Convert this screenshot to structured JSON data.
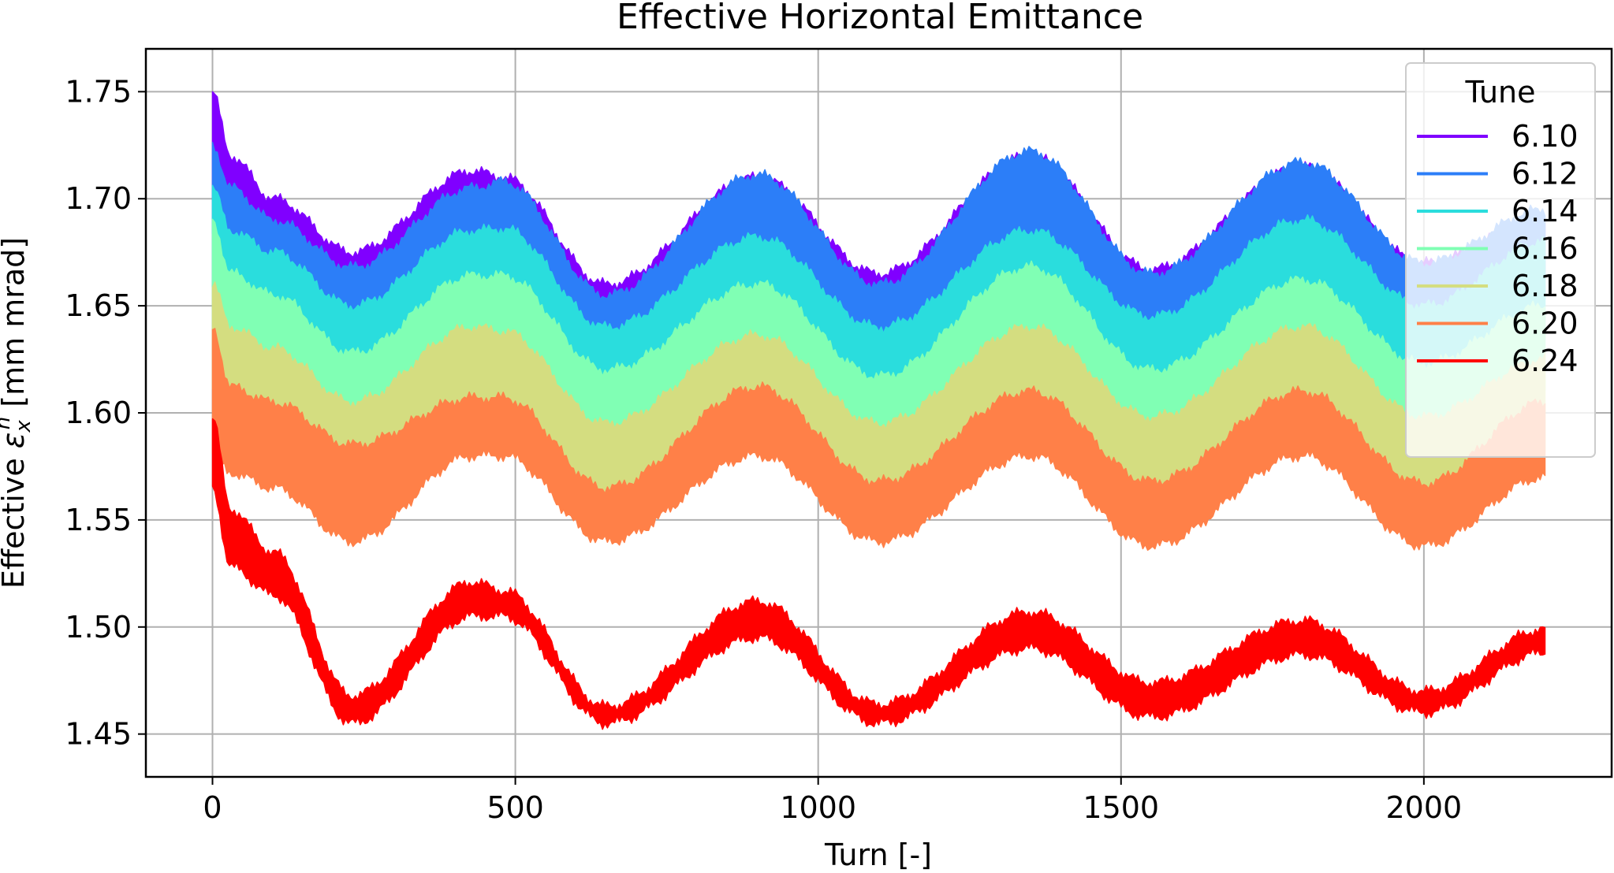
{
  "chart_data": {
    "type": "area",
    "title": "Effective Horizontal Emittance",
    "xlabel": "Turn [-]",
    "ylabel_prefix": "Effective ",
    "ylabel_symbol": "ε",
    "ylabel_subscript": "x",
    "ylabel_superscript": "n",
    "ylabel_units": " [mm mrad]",
    "xlim": [
      -110,
      2310
    ],
    "ylim": [
      1.43,
      1.77
    ],
    "xticks": [
      0,
      500,
      1000,
      1500,
      2000
    ],
    "yticks": [
      1.45,
      1.5,
      1.55,
      1.6,
      1.65,
      1.7,
      1.75
    ],
    "xtick_labels": [
      "0",
      "500",
      "1000",
      "1500",
      "2000"
    ],
    "ytick_labels": [
      "1.45",
      "1.50",
      "1.55",
      "1.60",
      "1.65",
      "1.70",
      "1.75"
    ],
    "grid": true,
    "legend": {
      "title": "Tune",
      "position": "top-right"
    },
    "x": [
      0,
      30,
      100,
      230,
      430,
      480,
      650,
      900,
      1100,
      1350,
      1550,
      1800,
      2000,
      2200
    ],
    "series": [
      {
        "name": "6.10",
        "color": "#8000ff",
        "upper": [
          1.75,
          1.72,
          1.7,
          1.675,
          1.713,
          1.71,
          1.66,
          1.71,
          1.665,
          1.72,
          1.667,
          1.715,
          1.67,
          1.69
        ],
        "lower": [
          1.7,
          1.69,
          1.675,
          1.655,
          1.695,
          1.68,
          1.64,
          1.685,
          1.64,
          1.7,
          1.648,
          1.69,
          1.645,
          1.665
        ]
      },
      {
        "name": "6.12",
        "color": "#2c7ef8",
        "upper": [
          1.725,
          1.705,
          1.69,
          1.668,
          1.705,
          1.708,
          1.655,
          1.711,
          1.66,
          1.722,
          1.665,
          1.717,
          1.67,
          1.695
        ],
        "lower": [
          1.685,
          1.665,
          1.655,
          1.63,
          1.67,
          1.665,
          1.62,
          1.67,
          1.625,
          1.68,
          1.625,
          1.675,
          1.625,
          1.65
        ]
      },
      {
        "name": "6.14",
        "color": "#2adddd",
        "upper": [
          1.705,
          1.685,
          1.675,
          1.65,
          1.685,
          1.686,
          1.64,
          1.682,
          1.64,
          1.685,
          1.645,
          1.69,
          1.65,
          1.68
        ],
        "lower": [
          1.66,
          1.645,
          1.635,
          1.61,
          1.645,
          1.645,
          1.605,
          1.645,
          1.605,
          1.645,
          1.605,
          1.645,
          1.61,
          1.635
        ]
      },
      {
        "name": "6.16",
        "color": "#80ffb4",
        "upper": [
          1.69,
          1.665,
          1.655,
          1.628,
          1.664,
          1.664,
          1.62,
          1.66,
          1.617,
          1.668,
          1.62,
          1.662,
          1.623,
          1.65
        ],
        "lower": [
          1.64,
          1.625,
          1.615,
          1.59,
          1.625,
          1.625,
          1.585,
          1.625,
          1.585,
          1.625,
          1.585,
          1.625,
          1.585,
          1.61
        ]
      },
      {
        "name": "6.18",
        "color": "#d4dd80",
        "upper": [
          1.66,
          1.64,
          1.63,
          1.605,
          1.64,
          1.638,
          1.595,
          1.636,
          1.595,
          1.64,
          1.598,
          1.64,
          1.598,
          1.625
        ],
        "lower": [
          1.61,
          1.6,
          1.59,
          1.565,
          1.6,
          1.6,
          1.56,
          1.6,
          1.56,
          1.6,
          1.56,
          1.6,
          1.56,
          1.585
        ]
      },
      {
        "name": "6.20",
        "color": "#ff8048",
        "upper": [
          1.64,
          1.612,
          1.605,
          1.585,
          1.607,
          1.607,
          1.565,
          1.612,
          1.568,
          1.61,
          1.568,
          1.61,
          1.567,
          1.605
        ],
        "lower": [
          1.58,
          1.572,
          1.565,
          1.54,
          1.58,
          1.58,
          1.54,
          1.58,
          1.54,
          1.58,
          1.538,
          1.58,
          1.538,
          1.57
        ]
      },
      {
        "name": "6.24",
        "color": "#ff0000",
        "upper": [
          1.598,
          1.555,
          1.535,
          1.468,
          1.521,
          1.517,
          1.463,
          1.512,
          1.464,
          1.507,
          1.474,
          1.503,
          1.47,
          1.499
        ],
        "lower": [
          1.565,
          1.528,
          1.515,
          1.455,
          1.505,
          1.505,
          1.455,
          1.495,
          1.455,
          1.49,
          1.458,
          1.487,
          1.46,
          1.488
        ]
      }
    ]
  }
}
